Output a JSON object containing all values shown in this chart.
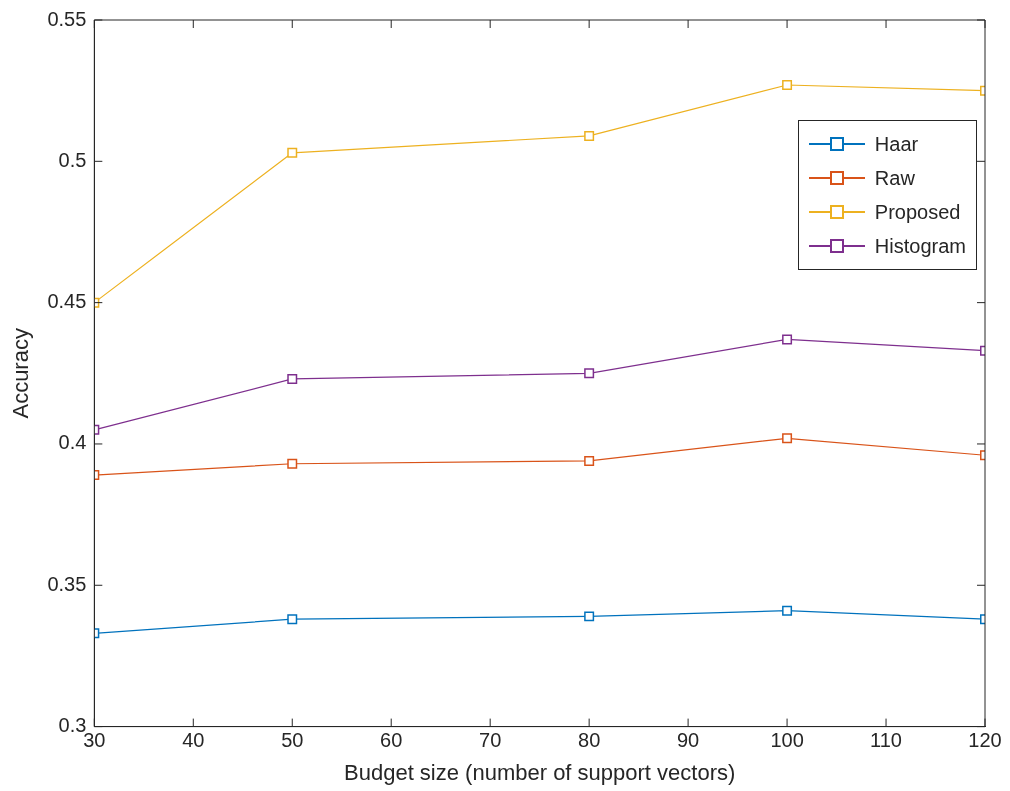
{
  "chart_data": {
    "type": "line",
    "xlabel": "Budget size (number of support vectors)",
    "ylabel": "Accuracy",
    "x": [
      30,
      50,
      80,
      100,
      120
    ],
    "series": [
      {
        "name": "Haar",
        "color": "#0072bd",
        "values": [
          0.333,
          0.338,
          0.339,
          0.341,
          0.338
        ]
      },
      {
        "name": "Raw",
        "color": "#d95319",
        "values": [
          0.389,
          0.393,
          0.394,
          0.402,
          0.396
        ]
      },
      {
        "name": "Proposed",
        "color": "#edb120",
        "values": [
          0.45,
          0.503,
          0.509,
          0.527,
          0.525
        ]
      },
      {
        "name": "Histogram",
        "color": "#7e2f8e",
        "values": [
          0.405,
          0.423,
          0.425,
          0.437,
          0.433
        ]
      }
    ],
    "xlim": [
      30,
      120
    ],
    "xticks": [
      30,
      40,
      50,
      60,
      70,
      80,
      90,
      100,
      110,
      120
    ],
    "ylim": [
      0.3,
      0.55
    ],
    "yticks": [
      0.3,
      0.35,
      0.4,
      0.45,
      0.5,
      0.55
    ],
    "legend": "top right",
    "marker": "square",
    "line_style": "solid",
    "grid": false
  }
}
